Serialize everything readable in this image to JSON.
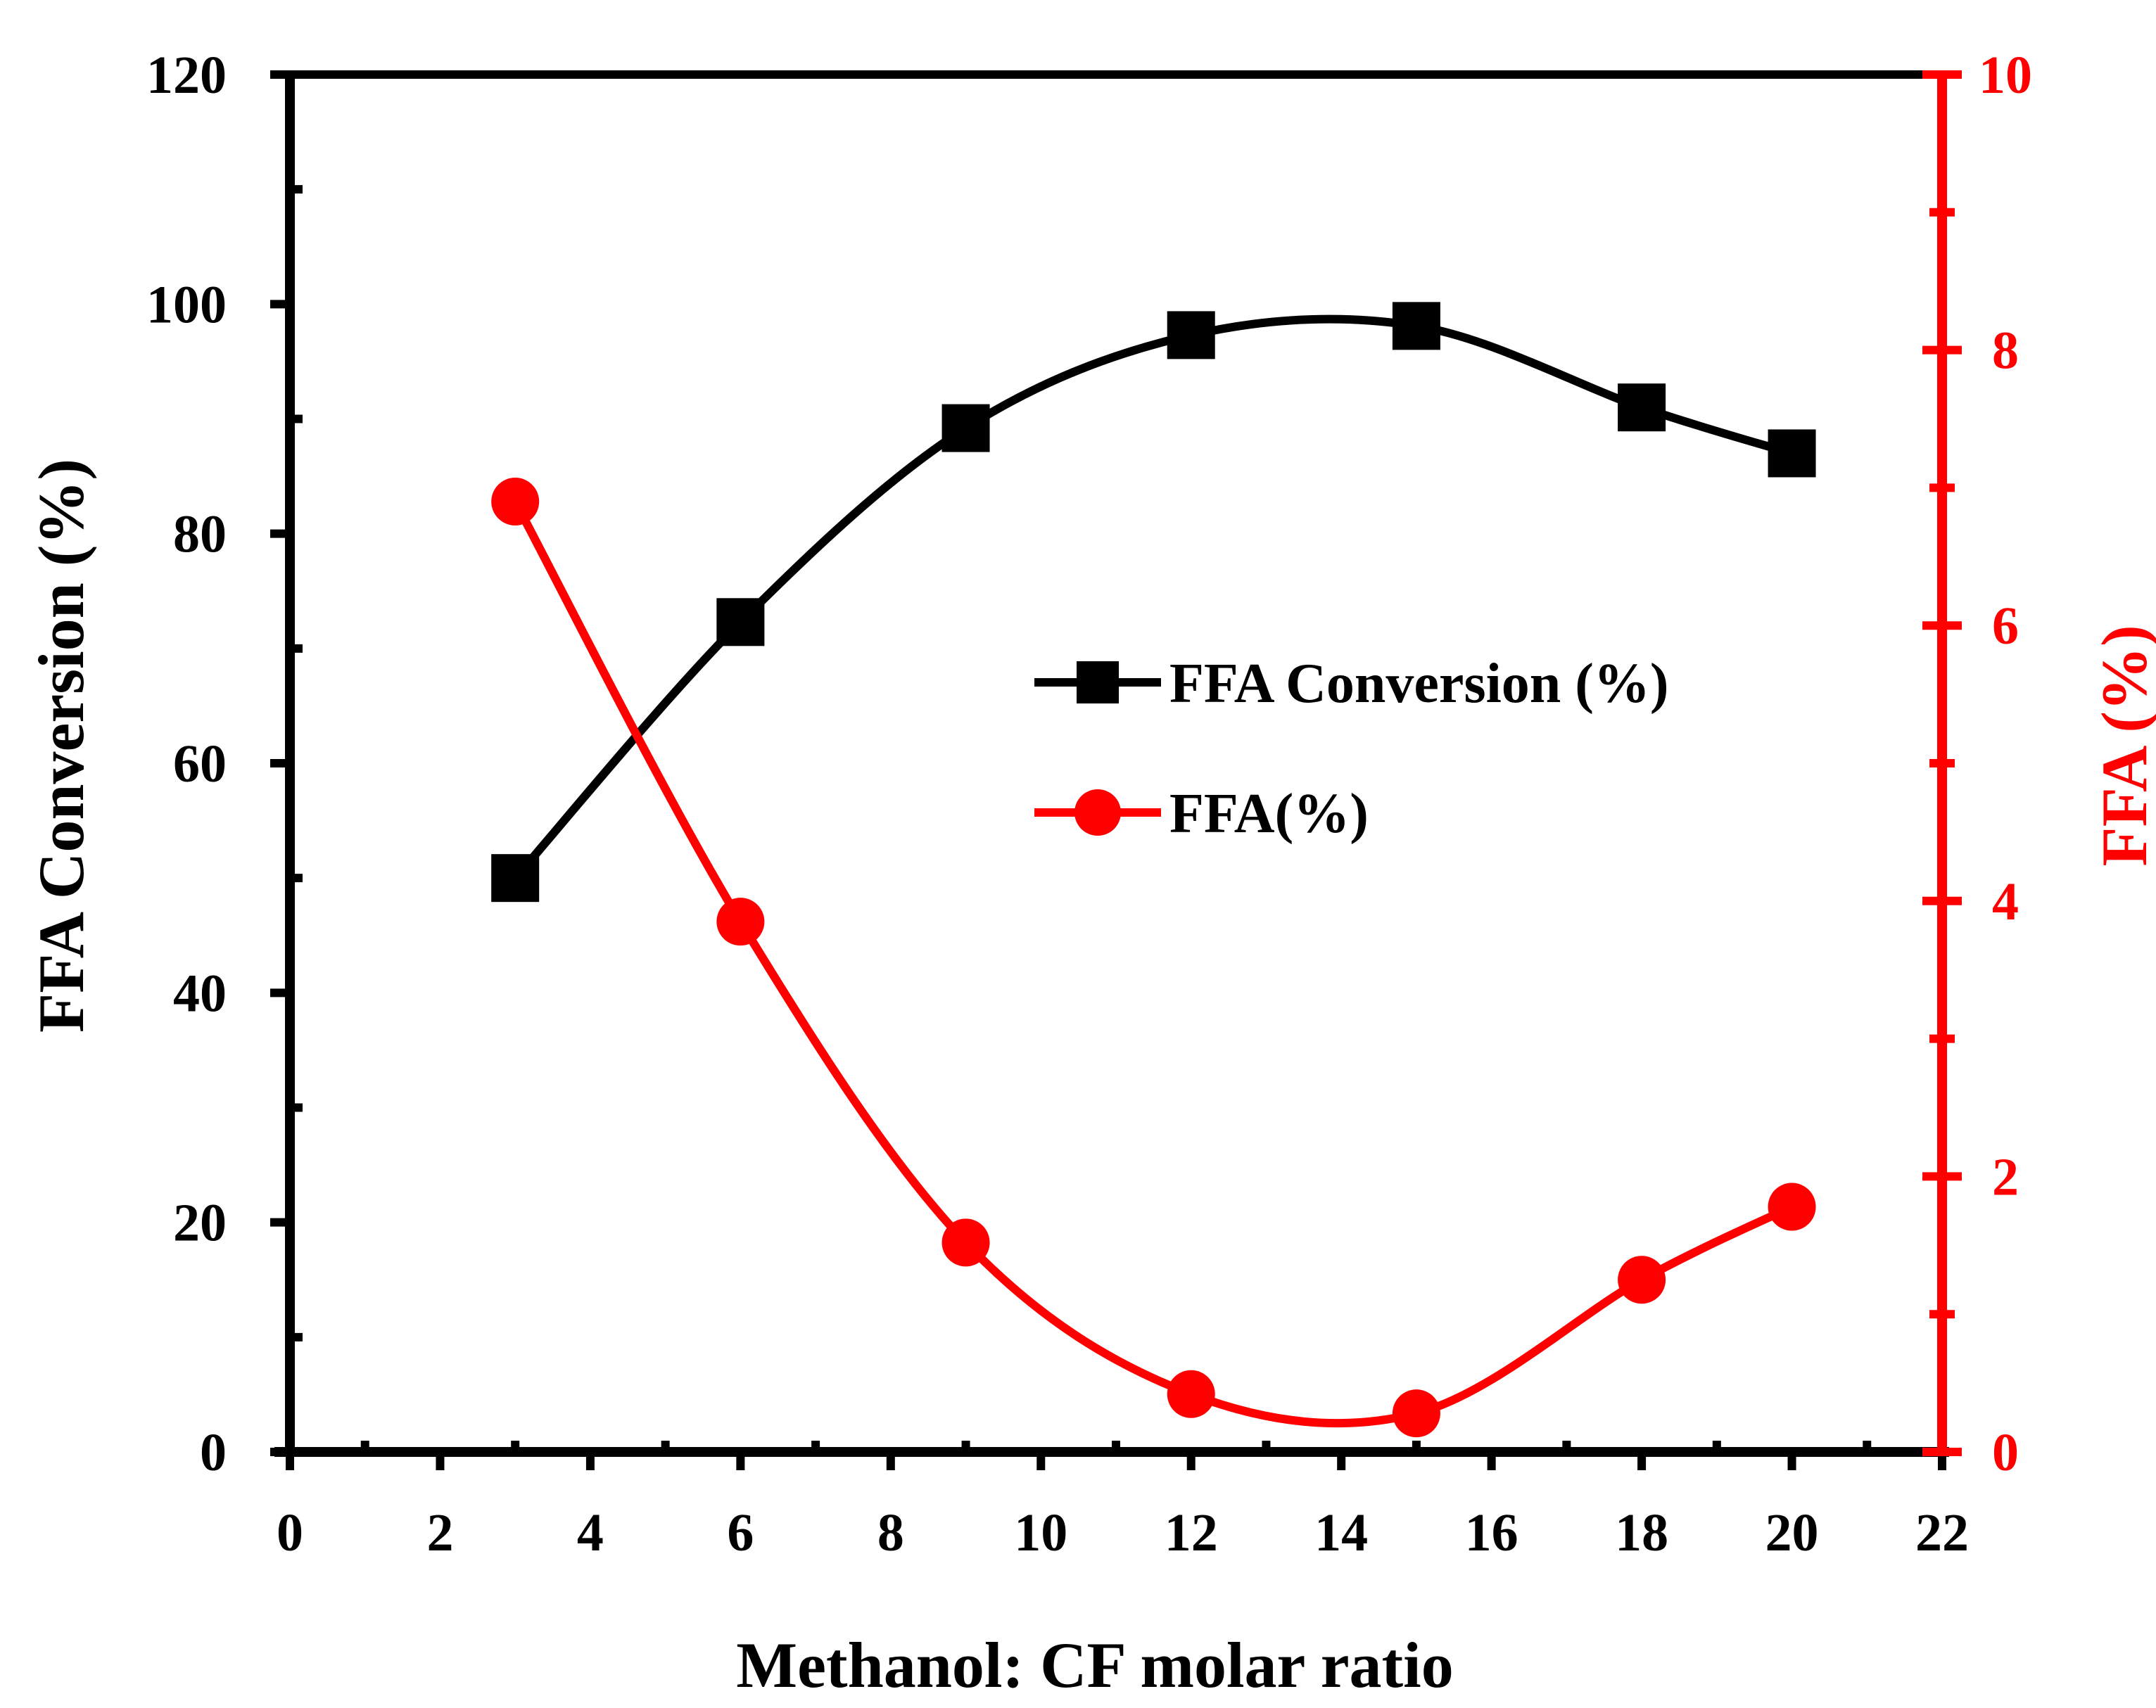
{
  "chart_data": {
    "type": "line",
    "title": "",
    "xlabel": "Methanol: CF molar ratio",
    "ylabel": "FFA Conversion (%)",
    "y2label": "FFA (%)",
    "xlim": [
      0,
      22
    ],
    "ylim": [
      0,
      120
    ],
    "y2lim": [
      0,
      10
    ],
    "xticks": [
      "0",
      "2",
      "4",
      "6",
      "8",
      "10",
      "12",
      "14",
      "16",
      "18",
      "20",
      "22"
    ],
    "yticks": [
      "0",
      "20",
      "40",
      "60",
      "80",
      "100",
      "120"
    ],
    "y2ticks": [
      "0",
      "2",
      "4",
      "6",
      "8",
      "10"
    ],
    "x": [
      3,
      6,
      9,
      12,
      15,
      18,
      20
    ],
    "series": [
      {
        "name": "FFA Conversion (%)",
        "axis": "left",
        "marker": "square",
        "color": "#000000",
        "values": [
          50,
          72.3,
          89.2,
          97.3,
          98.1,
          91.0,
          87.0
        ]
      },
      {
        "name": "FFA(%)",
        "axis": "right",
        "marker": "circle",
        "color": "#ff0000",
        "values": [
          6.9,
          3.85,
          1.52,
          0.42,
          0.28,
          1.25,
          1.78
        ]
      }
    ],
    "legend": "center-right",
    "grid": false
  }
}
